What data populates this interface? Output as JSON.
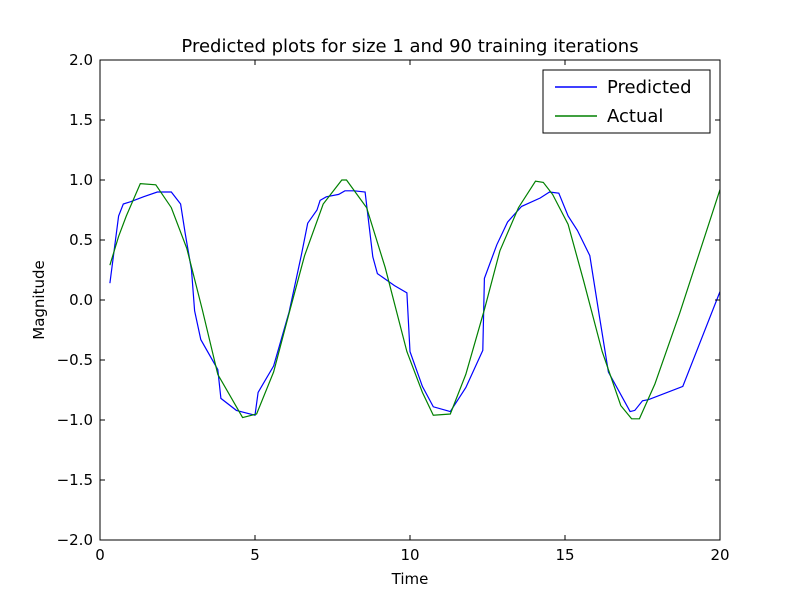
{
  "chart_data": {
    "type": "line",
    "title": "Predicted plots for size 1 and 90 training iterations",
    "xlabel": "Time",
    "ylabel": "Magnitude",
    "xlim": [
      0,
      20
    ],
    "ylim": [
      -2.0,
      2.0
    ],
    "x_ticks": [
      "0",
      "5",
      "10",
      "15",
      "20"
    ],
    "x_tick_values": [
      0,
      5,
      10,
      15,
      20
    ],
    "y_ticks": [
      "2.0",
      "1.5",
      "1.0",
      "0.5",
      "0.0",
      "−0.5",
      "−1.0",
      "−1.5",
      "−2.0"
    ],
    "y_tick_values": [
      2.0,
      1.5,
      1.0,
      0.5,
      0.0,
      -0.5,
      -1.0,
      -1.5,
      -2.0
    ],
    "grid": false,
    "legend_position": "top-right",
    "series": [
      {
        "name": "Predicted",
        "color": "#0000ff",
        "points": [
          [
            0.32,
            0.14
          ],
          [
            0.6,
            0.7
          ],
          [
            0.75,
            0.8
          ],
          [
            1.0,
            0.82
          ],
          [
            1.4,
            0.86
          ],
          [
            1.85,
            0.9
          ],
          [
            2.3,
            0.9
          ],
          [
            2.6,
            0.8
          ],
          [
            2.75,
            0.55
          ],
          [
            2.95,
            0.25
          ],
          [
            3.05,
            -0.09
          ],
          [
            3.25,
            -0.33
          ],
          [
            3.8,
            -0.58
          ],
          [
            3.9,
            -0.82
          ],
          [
            4.4,
            -0.92
          ],
          [
            5.0,
            -0.96
          ],
          [
            5.1,
            -0.77
          ],
          [
            5.6,
            -0.55
          ],
          [
            6.1,
            -0.1
          ],
          [
            6.5,
            0.38
          ],
          [
            6.7,
            0.64
          ],
          [
            7.0,
            0.75
          ],
          [
            7.1,
            0.83
          ],
          [
            7.3,
            0.86
          ],
          [
            7.7,
            0.88
          ],
          [
            7.9,
            0.91
          ],
          [
            8.2,
            0.91
          ],
          [
            8.55,
            0.9
          ],
          [
            8.8,
            0.36
          ],
          [
            8.95,
            0.22
          ],
          [
            9.5,
            0.12
          ],
          [
            9.9,
            0.06
          ],
          [
            10.0,
            -0.43
          ],
          [
            10.4,
            -0.72
          ],
          [
            10.75,
            -0.89
          ],
          [
            11.3,
            -0.93
          ],
          [
            11.8,
            -0.73
          ],
          [
            12.35,
            -0.42
          ],
          [
            12.4,
            0.18
          ],
          [
            12.8,
            0.46
          ],
          [
            13.15,
            0.65
          ],
          [
            13.6,
            0.78
          ],
          [
            14.2,
            0.85
          ],
          [
            14.5,
            0.9
          ],
          [
            14.8,
            0.89
          ],
          [
            15.1,
            0.7
          ],
          [
            15.4,
            0.58
          ],
          [
            15.8,
            0.37
          ],
          [
            16.1,
            -0.12
          ],
          [
            16.4,
            -0.6
          ],
          [
            17.1,
            -0.93
          ],
          [
            17.25,
            -0.92
          ],
          [
            17.5,
            -0.84
          ],
          [
            17.7,
            -0.83
          ],
          [
            18.8,
            -0.72
          ],
          [
            20.0,
            0.07
          ]
        ]
      },
      {
        "name": "Actual",
        "color": "#008000",
        "points": [
          [
            0.32,
            0.29
          ],
          [
            0.6,
            0.53
          ],
          [
            0.85,
            0.7
          ],
          [
            1.3,
            0.97
          ],
          [
            1.8,
            0.96
          ],
          [
            2.3,
            0.77
          ],
          [
            2.8,
            0.43
          ],
          [
            3.3,
            -0.08
          ],
          [
            3.8,
            -0.62
          ],
          [
            4.6,
            -0.98
          ],
          [
            5.05,
            -0.95
          ],
          [
            5.6,
            -0.6
          ],
          [
            6.1,
            -0.11
          ],
          [
            6.6,
            0.37
          ],
          [
            7.2,
            0.8
          ],
          [
            7.8,
            1.0
          ],
          [
            7.95,
            1.0
          ],
          [
            8.6,
            0.77
          ],
          [
            9.2,
            0.27
          ],
          [
            9.9,
            -0.43
          ],
          [
            10.4,
            -0.77
          ],
          [
            10.75,
            -0.96
          ],
          [
            11.3,
            -0.95
          ],
          [
            11.8,
            -0.62
          ],
          [
            12.4,
            -0.08
          ],
          [
            12.9,
            0.41
          ],
          [
            13.5,
            0.77
          ],
          [
            14.05,
            0.99
          ],
          [
            14.3,
            0.98
          ],
          [
            14.6,
            0.88
          ],
          [
            15.1,
            0.63
          ],
          [
            15.6,
            0.16
          ],
          [
            16.2,
            -0.43
          ],
          [
            16.8,
            -0.88
          ],
          [
            17.15,
            -0.99
          ],
          [
            17.4,
            -0.99
          ],
          [
            17.9,
            -0.7
          ],
          [
            18.7,
            -0.11
          ],
          [
            20.0,
            0.92
          ]
        ]
      }
    ]
  }
}
